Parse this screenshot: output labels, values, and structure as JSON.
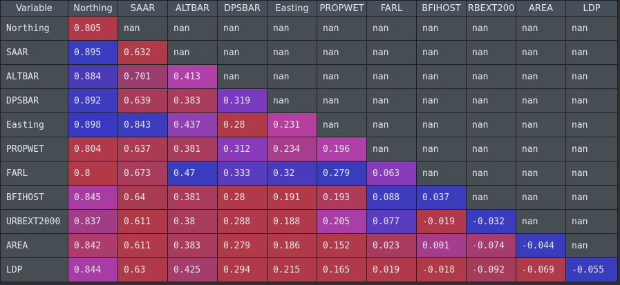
{
  "grid": {
    "corner_label": "Variable",
    "columns": [
      "Northing",
      "SAAR",
      "ALTBAR",
      "DPSBAR",
      "Easting",
      "PROPWET",
      "FARL",
      "BFIHOST",
      "RBEXT200",
      "AREA",
      "LDP"
    ],
    "rows": [
      {
        "label": "Northing",
        "values": [
          "0.805",
          "nan",
          "nan",
          "nan",
          "nan",
          "nan",
          "nan",
          "nan",
          "nan",
          "nan",
          "nan"
        ]
      },
      {
        "label": "SAAR",
        "values": [
          "0.895",
          "0.632",
          "nan",
          "nan",
          "nan",
          "nan",
          "nan",
          "nan",
          "nan",
          "nan",
          "nan"
        ]
      },
      {
        "label": "ALTBAR",
        "values": [
          "0.884",
          "0.701",
          "0.413",
          "nan",
          "nan",
          "nan",
          "nan",
          "nan",
          "nan",
          "nan",
          "nan"
        ]
      },
      {
        "label": "DPSBAR",
        "values": [
          "0.892",
          "0.639",
          "0.383",
          "0.319",
          "nan",
          "nan",
          "nan",
          "nan",
          "nan",
          "nan",
          "nan"
        ]
      },
      {
        "label": "Easting",
        "values": [
          "0.898",
          "0.843",
          "0.437",
          "0.28",
          "0.231",
          "nan",
          "nan",
          "nan",
          "nan",
          "nan",
          "nan"
        ]
      },
      {
        "label": "PROPWET",
        "values": [
          "0.804",
          "0.637",
          "0.381",
          "0.312",
          "0.234",
          "0.196",
          "nan",
          "nan",
          "nan",
          "nan",
          "nan"
        ]
      },
      {
        "label": "FARL",
        "values": [
          "0.8",
          "0.673",
          "0.47",
          "0.333",
          "0.32",
          "0.279",
          "0.063",
          "nan",
          "nan",
          "nan",
          "nan"
        ]
      },
      {
        "label": "BFIHOST",
        "values": [
          "0.845",
          "0.64",
          "0.381",
          "0.28",
          "0.191",
          "0.193",
          "0.088",
          "0.037",
          "nan",
          "nan",
          "nan"
        ]
      },
      {
        "label": "URBEXT2000",
        "values": [
          "0.837",
          "0.611",
          "0.38",
          "0.288",
          "0.188",
          "0.205",
          "0.077",
          "-0.019",
          "-0.032",
          "nan",
          "nan"
        ]
      },
      {
        "label": "AREA",
        "values": [
          "0.842",
          "0.611",
          "0.383",
          "0.279",
          "0.186",
          "0.152",
          "0.023",
          "0.001",
          "-0.074",
          "-0.044",
          "nan"
        ]
      },
      {
        "label": "LDP",
        "values": [
          "0.844",
          "0.63",
          "0.425",
          "0.294",
          "0.215",
          "0.165",
          "0.019",
          "-0.018",
          "-0.092",
          "-0.069",
          "-0.055"
        ]
      }
    ],
    "cell_colors": [
      [
        "#b13a4a",
        null,
        null,
        null,
        null,
        null,
        null,
        null,
        null,
        null,
        null
      ],
      [
        "#3a3cbf",
        "#b03a48",
        null,
        null,
        null,
        null,
        null,
        null,
        null,
        null,
        null
      ],
      [
        "#4a3ab8",
        "#9a3c6e",
        "#b040a8",
        null,
        null,
        null,
        null,
        null,
        null,
        null,
        null
      ],
      [
        "#3c3cbe",
        "#a83c58",
        "#a83c5c",
        "#7a3ac0",
        null,
        null,
        null,
        null,
        null,
        null,
        null
      ],
      [
        "#3838c0",
        "#3b3cbe",
        "#9040b0",
        "#b03a48",
        "#b43f9e",
        null,
        null,
        null,
        null,
        null,
        null
      ],
      [
        "#b13a4a",
        "#ab3b52",
        "#a83c5c",
        "#8a3cb8",
        "#a83d8e",
        "#b040a8",
        null,
        null,
        null,
        null,
        null
      ],
      [
        "#b23a48",
        "#a93d5e",
        "#3a3cbe",
        "#5a3cbe",
        "#4a3bbc",
        "#3a3cbe",
        "#8a3cb8",
        null,
        null,
        null,
        null
      ],
      [
        "#a83ca0",
        "#a83a52",
        "#a83c5c",
        "#b03a48",
        "#b03a4a",
        "#ad3c5a",
        "#3f3dbe",
        "#3c3cbe",
        null,
        null,
        null
      ],
      [
        "#a03d86",
        "#b03a48",
        "#a83c5c",
        "#b0394c",
        "#b03a4a",
        "#a83ea6",
        "#5a3cbe",
        "#ae3a4a",
        "#3a3cbe",
        null,
        null
      ],
      [
        "#ac3c6c",
        "#b03a48",
        "#a83c5c",
        "#b03a48",
        "#b03a4a",
        "#b03a4a",
        "#a83c60",
        "#a63c8c",
        "#a53c6e",
        "#3a3cbe",
        null
      ],
      [
        "#a83ca6",
        "#b03a48",
        "#a63c6c",
        "#b03a48",
        "#b03a4a",
        "#b03a4a",
        "#b0394c",
        "#b03a48",
        "#a53c5c",
        "#ae3a4a",
        "#3a3cbe"
      ]
    ]
  }
}
